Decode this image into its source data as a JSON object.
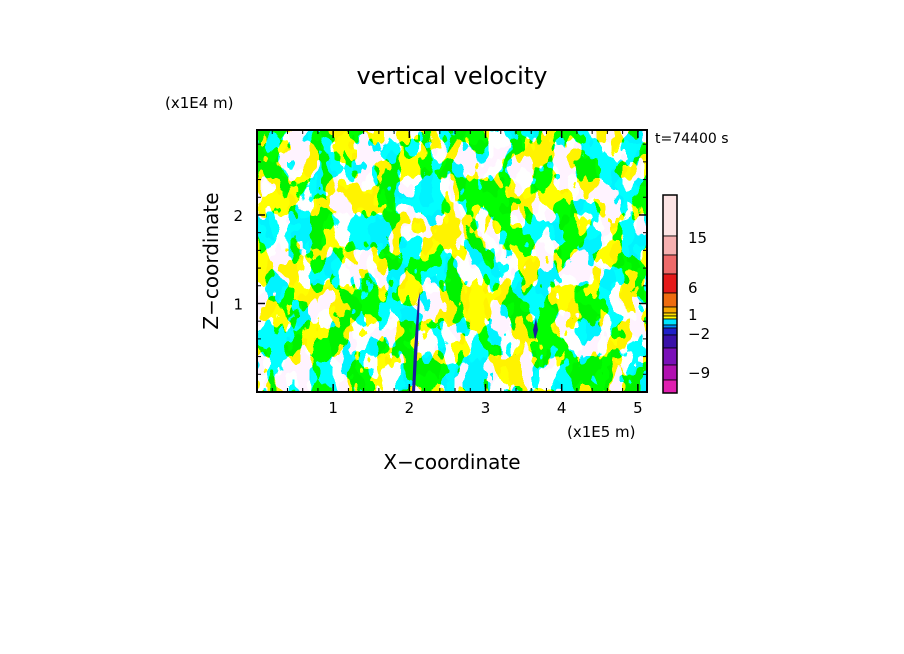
{
  "chart_data": {
    "type": "heatmap",
    "title": "vertical velocity",
    "time_label": "t=74400 s",
    "xlabel": "X−coordinate",
    "ylabel": "Z−coordinate",
    "x_unit": "(x1E5 m)",
    "y_unit": "(x1E4 m)",
    "xlim": [
      0,
      5.12
    ],
    "ylim": [
      0,
      2.96
    ],
    "x_ticks": [
      "1",
      "2",
      "3",
      "4",
      "5"
    ],
    "y_ticks": [
      "1",
      "2"
    ],
    "field_colors": {
      "positive": "#ffff00",
      "negative": "#00e5ff",
      "strong_negative": "#1a1aa0"
    },
    "colorbar": {
      "levels_top_to_bottom": [
        {
          "color": "#fce4e4"
        },
        {
          "color": "#f6b0b0"
        },
        {
          "color": "#ee6a6a"
        },
        {
          "color": "#e41a1a"
        },
        {
          "color": "#ee6c10"
        },
        {
          "color": "#f6a800"
        },
        {
          "color": "#ffdd00"
        },
        {
          "color": "#ffff00"
        },
        {
          "color": "#00e5ff"
        },
        {
          "color": "#0090ff"
        },
        {
          "color": "#2020c8"
        },
        {
          "color": "#3a10a8"
        },
        {
          "color": "#7a10b8"
        },
        {
          "color": "#b010b0"
        },
        {
          "color": "#e020b0"
        }
      ],
      "tick_labels": [
        "15",
        "6",
        "1",
        "−2",
        "−9"
      ]
    }
  }
}
